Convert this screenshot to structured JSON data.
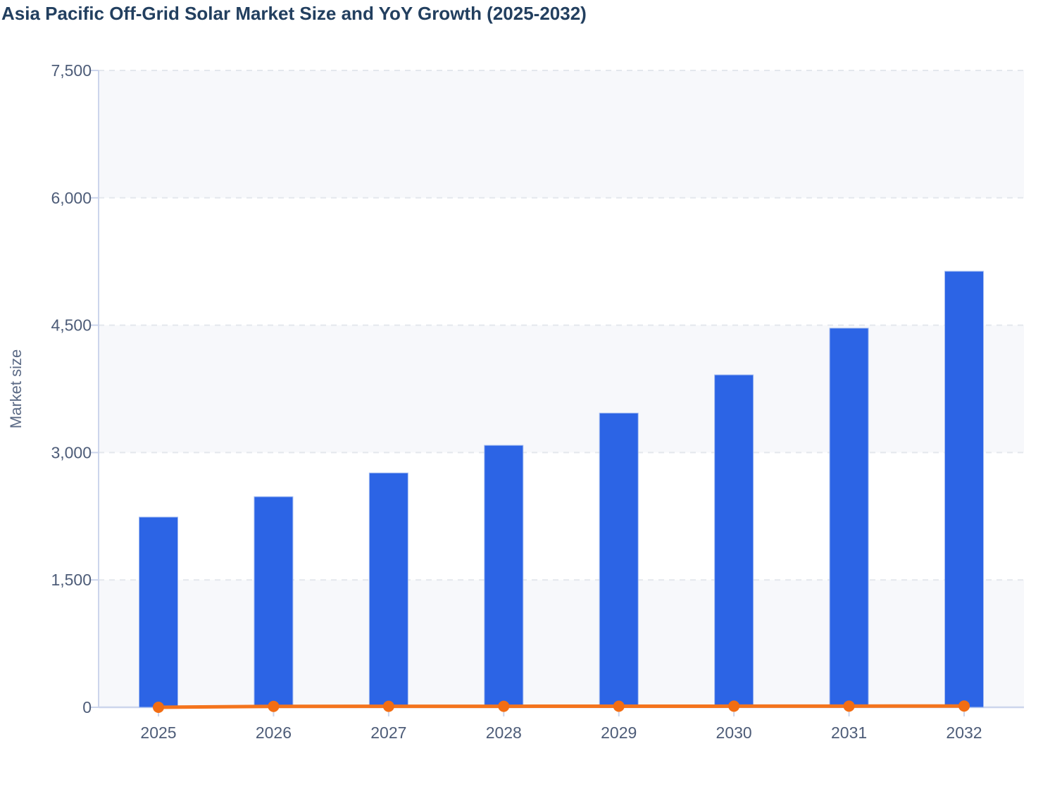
{
  "chart_data": {
    "type": "combo",
    "title": "Asia Pacific Off-Grid Solar Market Size and YoY Growth (2025-2032)",
    "xlabel": "",
    "ylabel": "Market size",
    "categories": [
      "2025",
      "2026",
      "2027",
      "2028",
      "2029",
      "2030",
      "2031",
      "2032"
    ],
    "series": [
      {
        "name": "Market size",
        "type": "bar",
        "color": "#2c64e5",
        "values": [
          2240,
          2480,
          2760,
          3085,
          3465,
          3915,
          4465,
          5135
        ]
      },
      {
        "name": "YoY growth",
        "type": "line",
        "color": "#f4741d",
        "values": [
          0,
          10.7,
          11.3,
          11.8,
          12.3,
          13.0,
          14.0,
          15.0
        ]
      }
    ],
    "ylim": [
      0,
      7500
    ],
    "yticks": [
      0,
      1500,
      3000,
      4500,
      6000,
      7500
    ],
    "ytick_labels": [
      "0",
      "1,500",
      "3,000",
      "4,500",
      "6,000",
      "7,500"
    ],
    "grid": "horizontal-dashed",
    "plot_bands": "alternating-light-from-bottom",
    "legend": "none"
  },
  "style": {
    "background": "#ffffff",
    "title_color": "#223f5f",
    "tick_label_color": "#4d5c78",
    "axis_title_color": "#5b6a85",
    "bar_color": "#2c64e5",
    "bar_border_color": "#a5bdf1",
    "line_color": "#f4741d",
    "point_color": "#f26d13",
    "band_color": "#f7f8fb",
    "grid_color": "#e4e7ed",
    "axis_line_color": "#ccd5ec"
  }
}
